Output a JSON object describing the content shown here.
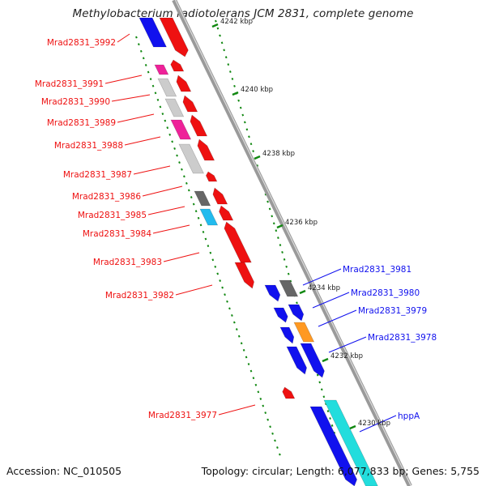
{
  "title": "Methylobacterium radiotolerans JCM 2831, complete genome",
  "accession": "Accession: NC_010505",
  "summary": "Topology: circular; Length: 6,077,833 bp; Genes: 5,755",
  "colors": {
    "red": "#ee1111",
    "blue": "#1111ee",
    "cyan": "#22dddd",
    "gray": "#cccccc",
    "darkgray": "#666666",
    "pink": "#ee2299",
    "orange": "#ff9922",
    "skyblue": "#22bbee",
    "tick": "#118811",
    "backbone": "#888888"
  },
  "scale": {
    "ticks": [
      {
        "label": "4242 kbp"
      },
      {
        "label": "4240 kbp"
      },
      {
        "label": "4238 kbp"
      },
      {
        "label": "4236 kbp"
      },
      {
        "label": "4234 kbp"
      },
      {
        "label": "4232 kbp"
      },
      {
        "label": "4230 kbp"
      }
    ]
  },
  "labels_left": [
    {
      "name": "Mrad2831_3992"
    },
    {
      "name": "Mrad2831_3991"
    },
    {
      "name": "Mrad2831_3990"
    },
    {
      "name": "Mrad2831_3989"
    },
    {
      "name": "Mrad2831_3988"
    },
    {
      "name": "Mrad2831_3987"
    },
    {
      "name": "Mrad2831_3986"
    },
    {
      "name": "Mrad2831_3985"
    },
    {
      "name": "Mrad2831_3984"
    },
    {
      "name": "Mrad2831_3983"
    },
    {
      "name": "Mrad2831_3982"
    },
    {
      "name": "Mrad2831_3977"
    }
  ],
  "labels_right": [
    {
      "name": "Mrad2831_3981"
    },
    {
      "name": "Mrad2831_3980"
    },
    {
      "name": "Mrad2831_3979"
    },
    {
      "name": "Mrad2831_3978"
    },
    {
      "name": "hppA"
    }
  ]
}
